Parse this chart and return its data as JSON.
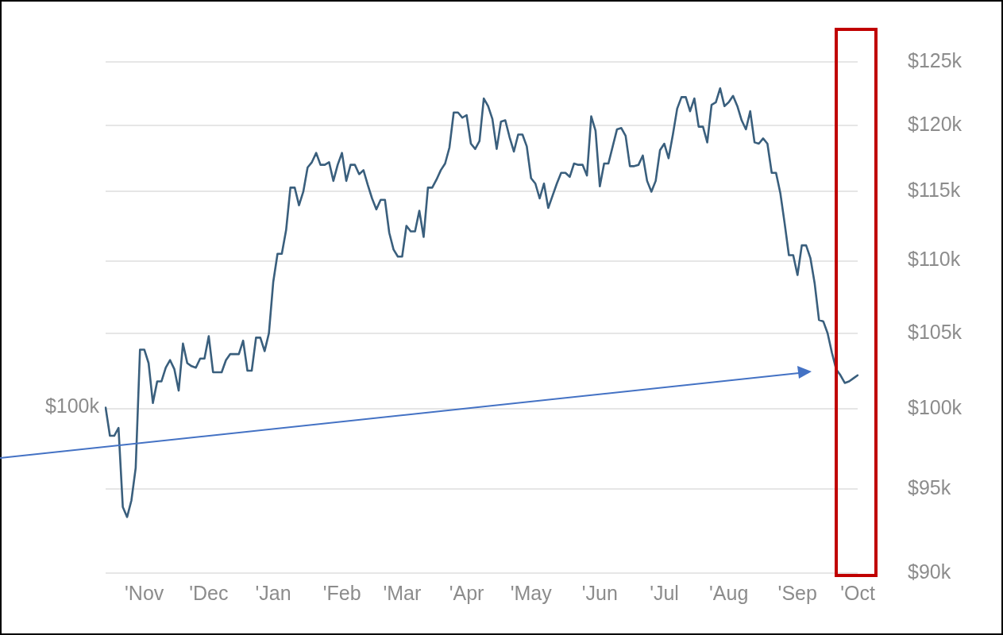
{
  "chart_data": {
    "type": "line",
    "color": "#3a5f7d",
    "log": true,
    "grid": "y",
    "marker": "none",
    "categories": [
      null,
      null,
      null,
      null,
      null,
      null,
      null,
      null,
      null,
      "'Nov",
      null,
      null,
      null,
      null,
      null,
      null,
      null,
      null,
      null,
      null,
      null,
      null,
      null,
      null,
      "'Dec",
      null,
      null,
      null,
      null,
      null,
      null,
      null,
      null,
      null,
      null,
      null,
      null,
      null,
      null,
      "'Jan",
      null,
      null,
      null,
      null,
      null,
      null,
      null,
      null,
      null,
      null,
      null,
      null,
      null,
      null,
      null,
      "'Feb",
      null,
      null,
      null,
      null,
      null,
      null,
      null,
      null,
      null,
      null,
      null,
      null,
      null,
      "'Mar",
      null,
      null,
      null,
      null,
      null,
      null,
      null,
      null,
      null,
      null,
      null,
      null,
      null,
      null,
      "'Apr",
      null,
      null,
      null,
      null,
      null,
      null,
      null,
      null,
      null,
      null,
      null,
      null,
      null,
      null,
      "'May",
      null,
      null,
      null,
      null,
      null,
      null,
      null,
      null,
      null,
      null,
      null,
      null,
      null,
      null,
      null,
      "'Jun",
      null,
      null,
      null,
      null,
      null,
      null,
      null,
      null,
      null,
      null,
      null,
      null,
      null,
      null,
      "'Jul",
      null,
      null,
      null,
      null,
      null,
      null,
      null,
      null,
      null,
      null,
      null,
      null,
      null,
      null,
      "'Aug",
      null,
      null,
      null,
      null,
      null,
      null,
      null,
      null,
      null,
      null,
      null,
      null,
      null,
      null,
      null,
      "'Sep",
      null,
      null,
      null,
      null,
      null,
      null,
      null,
      null,
      null,
      null,
      null,
      null,
      null,
      "'Oct"
    ],
    "values": [
      100100,
      98300,
      98300,
      98800,
      93900,
      93300,
      94300,
      96300,
      103900,
      103900,
      103000,
      100400,
      101800,
      101800,
      102700,
      103200,
      102600,
      101200,
      104300,
      103000,
      102800,
      102700,
      103300,
      103300,
      104800,
      102400,
      102400,
      102400,
      103200,
      103600,
      103600,
      103600,
      104500,
      102500,
      102500,
      104700,
      104700,
      103800,
      105000,
      108500,
      110500,
      110500,
      112200,
      115300,
      115300,
      114000,
      115000,
      116800,
      117200,
      117900,
      117000,
      117000,
      117200,
      115800,
      117000,
      117900,
      115800,
      117000,
      117000,
      116300,
      116600,
      115500,
      114500,
      113700,
      114400,
      114400,
      112000,
      110800,
      110300,
      110300,
      112500,
      112100,
      112100,
      113600,
      111700,
      115300,
      115300,
      115900,
      116600,
      117100,
      118300,
      121000,
      121000,
      120600,
      120800,
      118600,
      118200,
      118800,
      122100,
      121500,
      120500,
      118200,
      120300,
      120400,
      119100,
      118000,
      119300,
      119300,
      118400,
      116000,
      115600,
      114500,
      115600,
      113800,
      114700,
      115600,
      116400,
      116400,
      116100,
      117100,
      117000,
      117000,
      116200,
      120700,
      119600,
      115400,
      117100,
      117100,
      118400,
      119700,
      119800,
      119200,
      116900,
      116900,
      117000,
      117700,
      115800,
      115000,
      115800,
      118100,
      118600,
      117500,
      119300,
      121300,
      122200,
      122200,
      121100,
      122100,
      119900,
      119900,
      118700,
      121600,
      121800,
      122900,
      121500,
      121800,
      122300,
      121500,
      120400,
      119700,
      121100,
      118700,
      118600,
      119000,
      118600,
      116400,
      116400,
      114900,
      112700,
      110400,
      110400,
      109000,
      111100,
      111100,
      110200,
      108400,
      105900,
      105800,
      105000,
      103700,
      102600,
      102200,
      101700,
      101800,
      102000,
      102200
    ],
    "ylim": [
      90000,
      125000
    ],
    "yticks": [
      {
        "value": 90000,
        "label": "$90k"
      },
      {
        "value": 95000,
        "label": "$95k"
      },
      {
        "value": 100000,
        "label": "$100k"
      },
      {
        "value": 105000,
        "label": "$105k"
      },
      {
        "value": 110000,
        "label": "$110k"
      },
      {
        "value": 115000,
        "label": "$115k"
      },
      {
        "value": 120000,
        "label": "$120k"
      },
      {
        "value": 125000,
        "label": "$125k"
      }
    ],
    "annotations": [
      "$100k"
    ]
  }
}
